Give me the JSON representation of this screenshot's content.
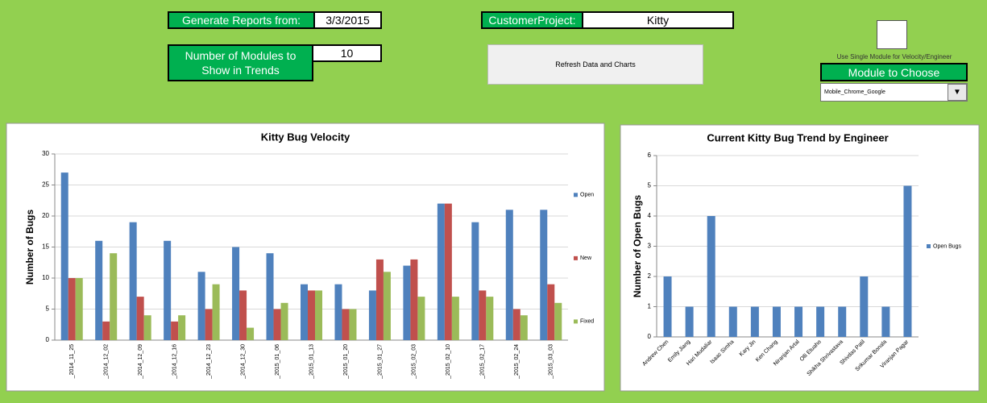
{
  "controls": {
    "report_from_label": "Generate Reports from:",
    "report_from_value": "3/3/2015",
    "project_label": "CustomerProject:",
    "project_value": "Kitty",
    "modules_label": "Number of Modules to Show in Trends",
    "modules_value": "10",
    "refresh_button": "Refresh Data and Charts",
    "single_module_label": "Use Single Module for Velocity/Engineer",
    "module_choose_label": "Module to Choose",
    "module_selected": "Mobile_Chrome_Google"
  },
  "chart_data": [
    {
      "type": "bar",
      "title": "Kitty Bug Velocity",
      "y_label": "Number of Bugs",
      "categories": [
        "_2014_11_25",
        "_2014_12_02",
        "_2014_12_09",
        "_2014_12_16",
        "_2014_12_23",
        "_2014_12_30",
        "_2015_01_06",
        "_2015_01_13",
        "_2015_01_20",
        "_2015_01_27",
        "_2015_02_03",
        "_2015_02_10",
        "_2015_02_17",
        "_2015_02_24",
        "_2015_03_03"
      ],
      "series": [
        {
          "name": "Open",
          "color": "#4f81bd",
          "values": [
            27,
            16,
            19,
            16,
            11,
            15,
            14,
            9,
            9,
            8,
            12,
            22,
            19,
            21,
            21
          ]
        },
        {
          "name": "New",
          "color": "#c0504d",
          "values": [
            10,
            3,
            7,
            3,
            5,
            8,
            5,
            8,
            5,
            13,
            13,
            22,
            8,
            5,
            9
          ]
        },
        {
          "name": "Fixed",
          "color": "#9bbb59",
          "values": [
            10,
            14,
            4,
            4,
            9,
            2,
            6,
            8,
            5,
            11,
            7,
            7,
            7,
            4,
            6
          ]
        }
      ],
      "ylim": [
        0,
        30
      ],
      "yticks": [
        0,
        5,
        10,
        15,
        20,
        25,
        30
      ],
      "grid": true,
      "legend": "right"
    },
    {
      "type": "bar",
      "title": "Current Kitty Bug Trend by Engineer",
      "y_label": "Number of Open Bugs",
      "categories": [
        "Andrew Chen",
        "Emily Jiang",
        "Hari Mudaliar",
        "Isaac Simha",
        "Kary Jin",
        "Ken Chang",
        "Niranjan Artal",
        "Olli Etuaho",
        "Shikha Shrivastava",
        "Shivdas Patil",
        "Srikumar Bonala",
        "Viranjan Pagar"
      ],
      "series": [
        {
          "name": "Open Bugs",
          "color": "#4f81bd",
          "values": [
            2,
            1,
            4,
            1,
            1,
            1,
            1,
            1,
            1,
            2,
            1,
            5
          ]
        }
      ],
      "ylim": [
        0,
        6
      ],
      "yticks": [
        0,
        1,
        2,
        3,
        4,
        5,
        6
      ],
      "grid": true,
      "legend": "right"
    }
  ]
}
